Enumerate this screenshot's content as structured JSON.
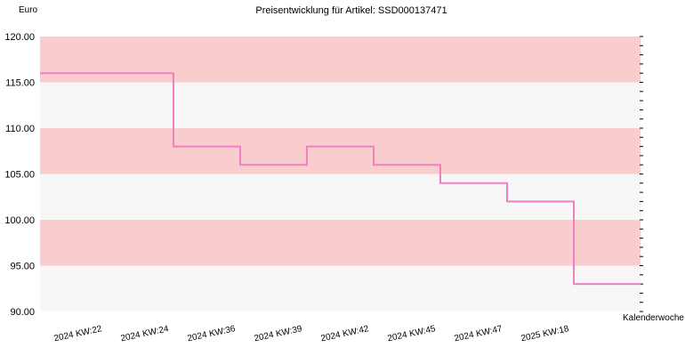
{
  "chart_data": {
    "type": "line",
    "step": true,
    "title": "Preisentwicklung für Artikel: SSD000137471",
    "ylabel": "Euro",
    "xlabel": "Kalenderwoche",
    "ylim": [
      90,
      120
    ],
    "y_ticks": [
      "90.00",
      "95.00",
      "100.00",
      "105.00",
      "110.00",
      "115.00",
      "120.00"
    ],
    "categories": [
      "2024 KW:22",
      "2024 KW:24",
      "2024 KW:36",
      "2024 KW:39",
      "2024 KW:42",
      "2024 KW:45",
      "2024 KW:47",
      "2025 KW:18"
    ],
    "series": [
      {
        "values": [
          116,
          108,
          106,
          108,
          106,
          104,
          102,
          93
        ]
      }
    ],
    "band_colors": [
      "#f7f7f7",
      "#f9cdcd"
    ],
    "line_color": "#f280c0",
    "grid": false
  }
}
